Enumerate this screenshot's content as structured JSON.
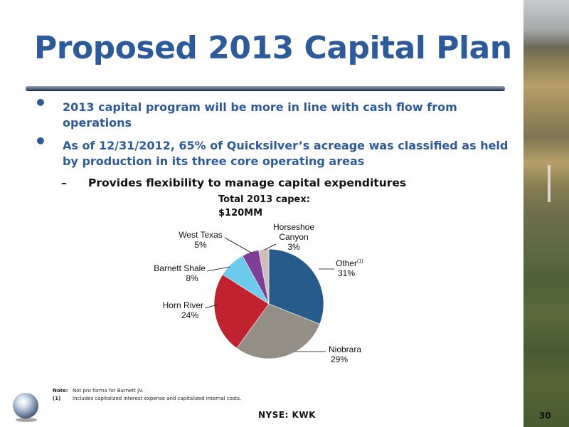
{
  "slide": {
    "title": "Proposed 2013 Capital Plan",
    "bullets": [
      "2013 capital program will be more in line with cash flow from operations",
      "As of 12/31/2012, 65% of Quicksilver’s acreage was classified as held by production in its three core operating areas"
    ],
    "subbullet": "Provides flexibility to manage capital expenditures",
    "footer": "NYSE:  KWK",
    "page_number": "30",
    "notes": [
      {
        "key": "Note:",
        "text": "Not pro forma for Barnett JV."
      },
      {
        "key": "(1)",
        "text": "Includes capitalized interest expense and capitalized internal costs."
      }
    ]
  },
  "chart_data": {
    "type": "pie",
    "title_line1": "Total 2013 capex:",
    "title_line2": "$120MM",
    "slices": [
      {
        "label": "Other",
        "superscript": "(1)",
        "pct_label": "31%",
        "value": 31,
        "color": "#275b8c"
      },
      {
        "label": "Niobrara",
        "pct_label": "29%",
        "value": 29,
        "color": "#938e86"
      },
      {
        "label": "Horn River",
        "pct_label": "24%",
        "value": 24,
        "color": "#c0232f"
      },
      {
        "label": "Barnett Shale",
        "pct_label": "8%",
        "value": 8,
        "color": "#6ccbec"
      },
      {
        "label": "West Texas",
        "pct_label": "5%",
        "value": 5,
        "color": "#7d3f98"
      },
      {
        "label": "Horseshoe Canyon",
        "label_line1": "Horseshoe",
        "label_line2": "Canyon",
        "pct_label": "3%",
        "value": 3,
        "color": "#cdbfbc"
      }
    ]
  }
}
